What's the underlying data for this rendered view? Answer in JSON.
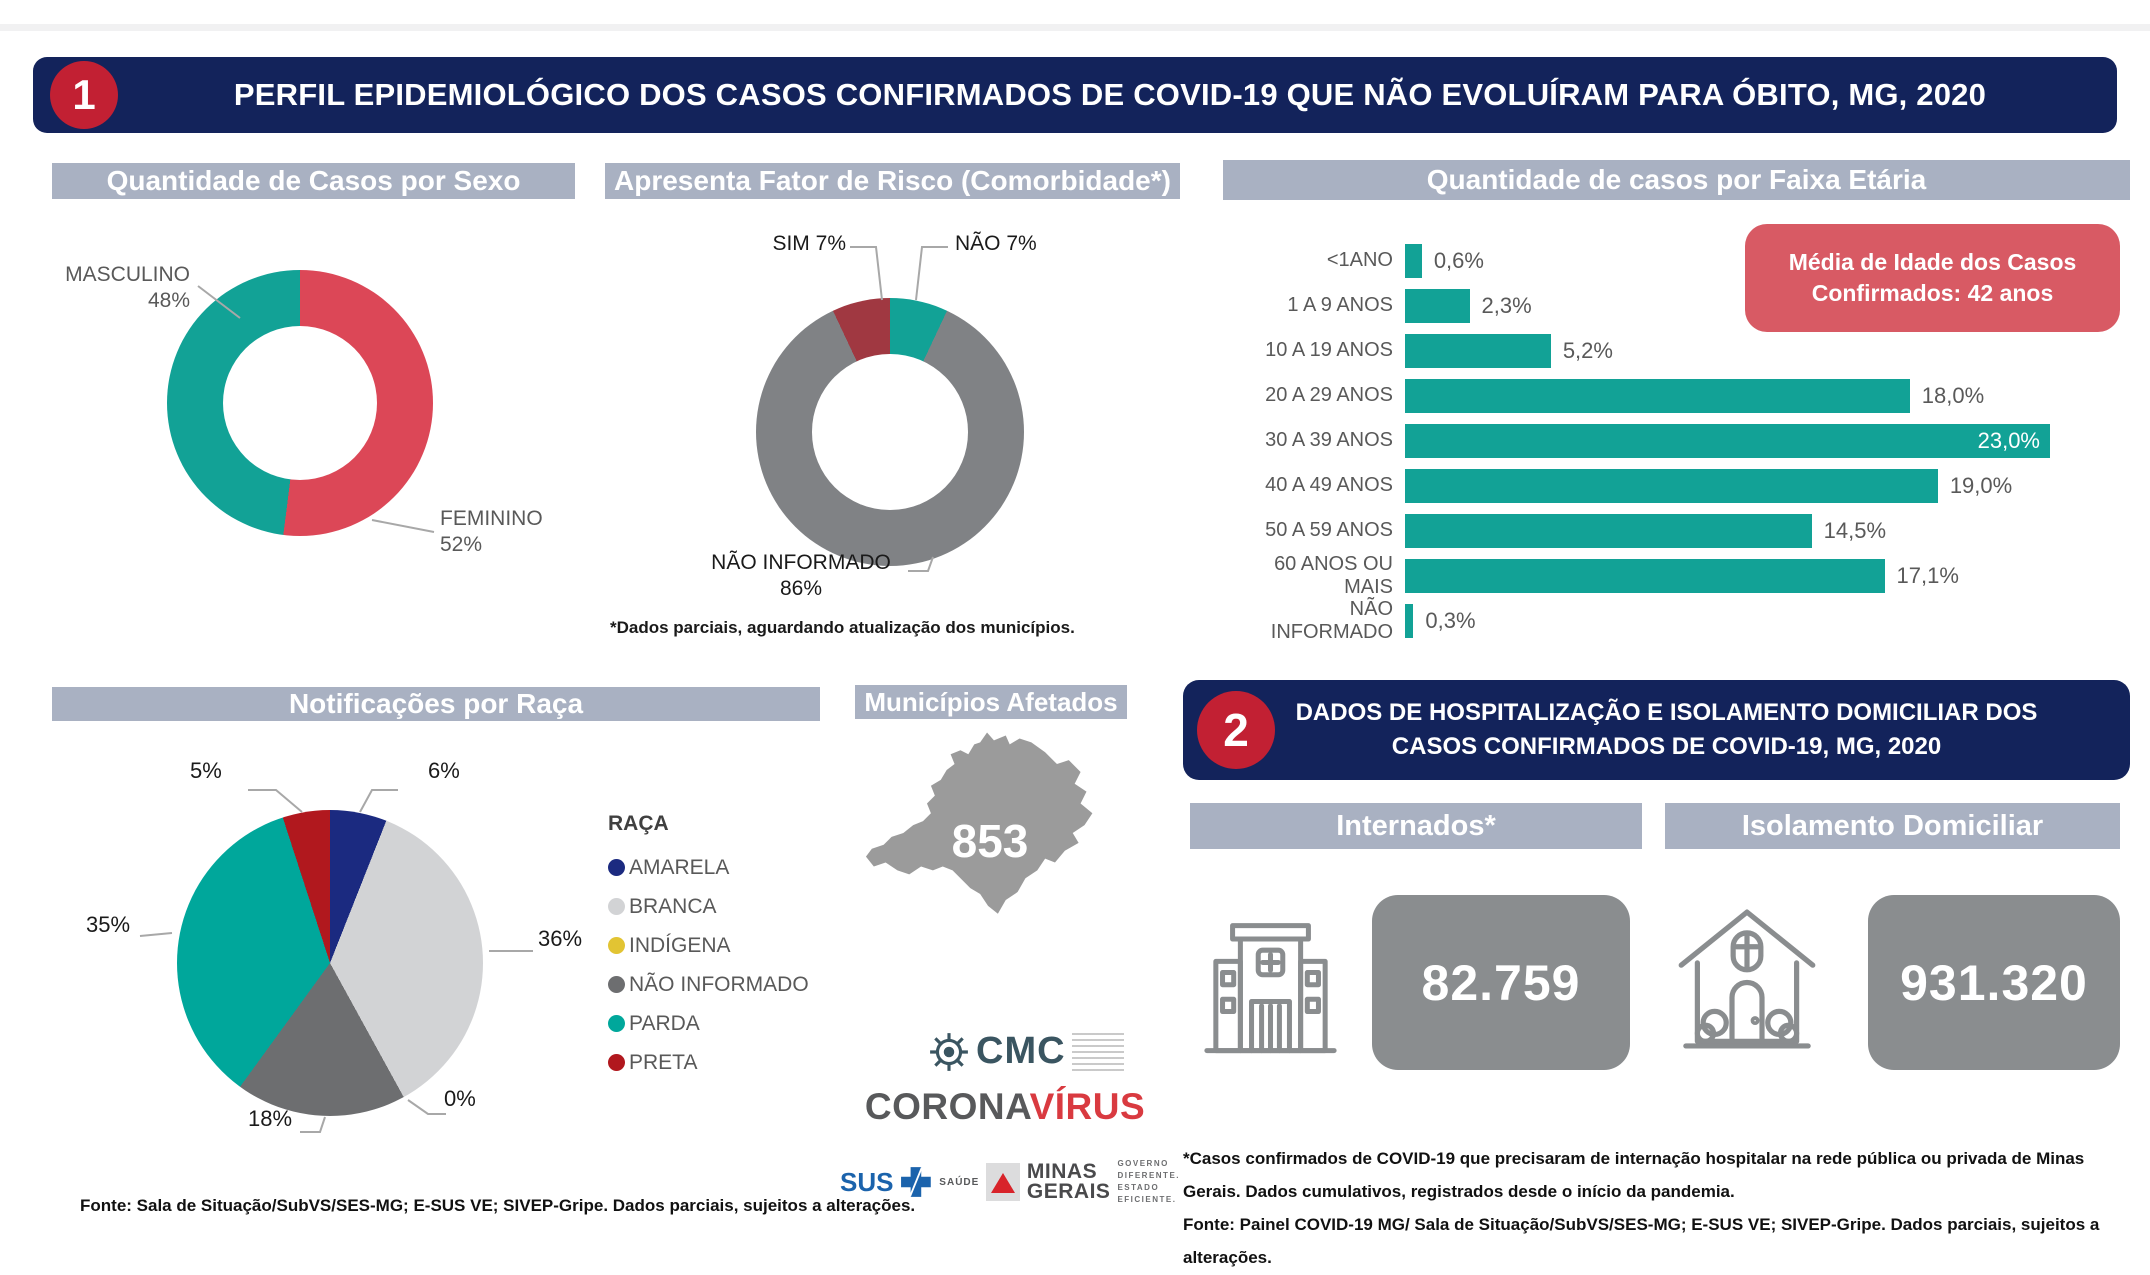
{
  "page": {
    "background": "#ffffff",
    "accent_navy": "#13235B",
    "accent_red": "#C22033",
    "header_gray": "#A9B1C2"
  },
  "section1": {
    "badge": "1",
    "title": "PERFIL EPIDEMIOLÓGICO DOS CASOS CONFIRMADOS DE COVID-19 QUE NÃO EVOLUÍRAM PARA ÓBITO, MG, 2020"
  },
  "chart_data": [
    {
      "id": "casos_por_sexo",
      "type": "donut",
      "title": "Quantidade de Casos por Sexo",
      "start": "12-oclock",
      "direction": "clockwise",
      "hole": true,
      "slices": [
        {
          "label": "FEMININO",
          "value": 52,
          "display": "52%",
          "color": "#DC4757"
        },
        {
          "label": "MASCULINO",
          "value": 48,
          "display": "48%",
          "color": "#12A296"
        }
      ]
    },
    {
      "id": "fator_de_risco",
      "type": "donut",
      "title": "Apresenta Fator de Risco (Comorbidade*)",
      "start": "12-oclock",
      "direction": "clockwise",
      "hole": true,
      "slices": [
        {
          "label": "NÃO",
          "value": 7,
          "display": "7%",
          "color": "#12A296"
        },
        {
          "label": "NÃO INFORMADO",
          "value": 86,
          "display": "86%",
          "color": "#808285"
        },
        {
          "label": "SIM",
          "value": 7,
          "display": "7%",
          "color": "#A03841"
        }
      ],
      "footnote": "*Dados parciais, aguardando atualização dos municípios."
    },
    {
      "id": "casos_por_faixa_etaria",
      "type": "bar",
      "title": "Quantidade de casos por Faixa Etária",
      "categories": [
        "<1ANO",
        "1 A 9 ANOS",
        "10 A 19 ANOS",
        "20 A 29 ANOS",
        "30 A 39 ANOS",
        "40 A 49 ANOS",
        "50 A 59 ANOS",
        "60 ANOS OU MAIS",
        "NÃO INFORMADO"
      ],
      "values": [
        0.6,
        2.3,
        5.2,
        18.0,
        23.0,
        19.0,
        14.5,
        17.1,
        0.3
      ],
      "displays": [
        "0,6%",
        "2,3%",
        "5,2%",
        "18,0%",
        "23,0%",
        "19,0%",
        "14,5%",
        "17,1%",
        "0,3%"
      ],
      "color": "#12A296",
      "xlim": [
        0,
        23
      ],
      "grid": false,
      "callout": {
        "text": "Média de Idade dos Casos Confirmados: 42 anos",
        "color": "#D85A64"
      }
    },
    {
      "id": "notificacoes_por_raca",
      "type": "pie",
      "title": "Notificações por Raça",
      "legend_title": "RAÇA",
      "legend_position": "right",
      "slices": [
        {
          "label": "AMARELA",
          "value": 6,
          "display": "6%",
          "color": "#1B2A80"
        },
        {
          "label": "BRANCA",
          "value": 36,
          "display": "36%",
          "color": "#D2D3D5"
        },
        {
          "label": "INDÍGENA",
          "value": 0,
          "display": "0%",
          "color": "#E2C433"
        },
        {
          "label": "NÃO INFORMADO",
          "value": 18,
          "display": "18%",
          "color": "#6D6E70"
        },
        {
          "label": "PARDA",
          "value": 35,
          "display": "35%",
          "color": "#00A79B"
        },
        {
          "label": "PRETA",
          "value": 5,
          "display": "5%",
          "color": "#B1181E"
        }
      ]
    }
  ],
  "municipios": {
    "title": "Municípios Afetados",
    "count": "853"
  },
  "section2": {
    "badge": "2",
    "title": "DADOS DE HOSPITALIZAÇÃO E ISOLAMENTO DOMICILIAR DOS CASOS CONFIRMADOS DE COVID-19, MG, 2020",
    "internados": {
      "title": "Internados*",
      "value": "82.759"
    },
    "isolamento": {
      "title": "Isolamento Domiciliar",
      "value": "931.320"
    },
    "footnote": "*Casos confirmados de COVID-19 que precisaram de internação hospitalar na rede pública ou privada de Minas Gerais. Dados cumulativos, registrados desde o início da pandemia.",
    "fonte": "Fonte: Painel COVID-19 MG/ Sala de Situação/SubVS/SES-MG; E-SUS VE; SIVEP-Gripe. Dados parciais, sujeitos a alterações."
  },
  "footer": {
    "fonte": "Fonte: Sala de Situação/SubVS/SES-MG; E-SUS VE; SIVEP-Gripe. Dados parciais, sujeitos a alterações.",
    "logos": {
      "cmc": "CMC",
      "corona_part1": "CORONA",
      "corona_part2": "VÍRUS",
      "sus": "SUS",
      "saude": "SAÚDE",
      "mg_line1": "MINAS",
      "mg_line2": "GERAIS",
      "gov_lines": [
        "GOVERNO",
        "DIFERENTE.",
        "ESTADO",
        "EFICIENTE."
      ]
    }
  }
}
